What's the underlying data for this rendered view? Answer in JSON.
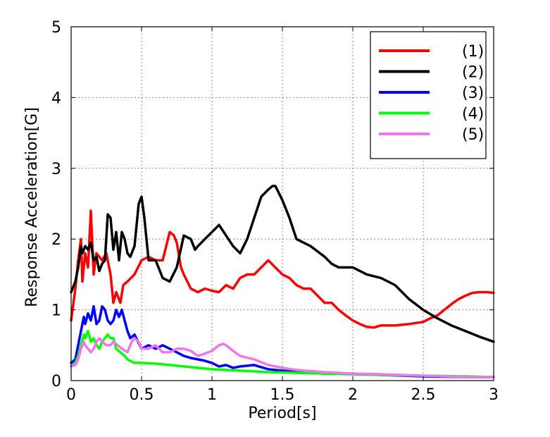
{
  "chart_data": {
    "type": "line",
    "title": "",
    "xlabel": "Period[s]",
    "ylabel": "Response Acceleration[G]",
    "xlim": [
      0,
      3
    ],
    "ylim": [
      0,
      5
    ],
    "xticks": [
      "0",
      "0.5",
      "1",
      "1.5",
      "2",
      "2.5",
      "3"
    ],
    "yticks": [
      "0",
      "1",
      "2",
      "3",
      "4",
      "5"
    ],
    "grid": true,
    "legend_position": "top-right",
    "series": [
      {
        "name": "(1)",
        "color": "#ff0000",
        "x": [
          0.0,
          0.03,
          0.05,
          0.07,
          0.08,
          0.1,
          0.12,
          0.14,
          0.16,
          0.18,
          0.2,
          0.22,
          0.25,
          0.28,
          0.3,
          0.32,
          0.35,
          0.37,
          0.4,
          0.45,
          0.5,
          0.55,
          0.6,
          0.65,
          0.7,
          0.73,
          0.75,
          0.78,
          0.8,
          0.85,
          0.9,
          0.95,
          1.0,
          1.05,
          1.1,
          1.15,
          1.2,
          1.25,
          1.3,
          1.35,
          1.4,
          1.45,
          1.5,
          1.55,
          1.6,
          1.65,
          1.7,
          1.75,
          1.8,
          1.85,
          1.9,
          1.95,
          2.0,
          2.05,
          2.1,
          2.15,
          2.2,
          2.25,
          2.3,
          2.4,
          2.5,
          2.55,
          2.6,
          2.65,
          2.7,
          2.75,
          2.8,
          2.85,
          2.9,
          2.95,
          3.0
        ],
        "y": [
          0.85,
          1.3,
          1.7,
          2.0,
          1.4,
          1.8,
          1.6,
          2.4,
          1.5,
          1.8,
          1.75,
          1.7,
          1.8,
          1.5,
          1.1,
          1.25,
          1.1,
          1.35,
          1.4,
          1.5,
          1.7,
          1.75,
          1.7,
          1.7,
          2.1,
          2.05,
          1.95,
          1.6,
          1.5,
          1.3,
          1.25,
          1.3,
          1.27,
          1.25,
          1.35,
          1.3,
          1.45,
          1.5,
          1.5,
          1.6,
          1.7,
          1.6,
          1.5,
          1.45,
          1.35,
          1.3,
          1.3,
          1.2,
          1.1,
          1.1,
          1.0,
          0.92,
          0.85,
          0.8,
          0.76,
          0.75,
          0.78,
          0.78,
          0.78,
          0.8,
          0.83,
          0.88,
          0.92,
          1.0,
          1.08,
          1.15,
          1.2,
          1.24,
          1.25,
          1.25,
          1.24
        ]
      },
      {
        "name": "(2)",
        "color": "#000000",
        "x": [
          0.0,
          0.03,
          0.05,
          0.07,
          0.08,
          0.1,
          0.12,
          0.14,
          0.16,
          0.18,
          0.2,
          0.22,
          0.24,
          0.26,
          0.28,
          0.3,
          0.32,
          0.34,
          0.36,
          0.38,
          0.4,
          0.42,
          0.45,
          0.48,
          0.5,
          0.52,
          0.55,
          0.6,
          0.65,
          0.7,
          0.75,
          0.8,
          0.85,
          0.88,
          0.9,
          0.95,
          1.0,
          1.05,
          1.1,
          1.15,
          1.2,
          1.25,
          1.3,
          1.35,
          1.4,
          1.43,
          1.45,
          1.5,
          1.55,
          1.6,
          1.65,
          1.7,
          1.8,
          1.85,
          1.9,
          1.95,
          2.0,
          2.05,
          2.1,
          2.2,
          2.3,
          2.4,
          2.5,
          2.6,
          2.7,
          2.8,
          2.9,
          3.0
        ],
        "y": [
          1.25,
          1.4,
          1.6,
          1.9,
          1.8,
          1.9,
          1.85,
          1.95,
          1.7,
          1.75,
          1.55,
          1.65,
          1.7,
          2.35,
          2.3,
          1.85,
          2.1,
          1.7,
          2.1,
          2.0,
          1.8,
          1.75,
          1.9,
          2.5,
          2.6,
          2.3,
          1.7,
          1.7,
          1.45,
          1.4,
          1.6,
          2.05,
          2.0,
          1.85,
          1.9,
          2.0,
          2.1,
          2.2,
          2.05,
          1.9,
          1.8,
          2.0,
          2.3,
          2.6,
          2.7,
          2.75,
          2.75,
          2.55,
          2.3,
          2.0,
          1.95,
          1.9,
          1.75,
          1.65,
          1.6,
          1.6,
          1.6,
          1.55,
          1.5,
          1.45,
          1.35,
          1.15,
          1.0,
          0.88,
          0.78,
          0.7,
          0.62,
          0.55
        ]
      },
      {
        "name": "(3)",
        "color": "#0000ff",
        "x": [
          0.0,
          0.03,
          0.05,
          0.07,
          0.09,
          0.1,
          0.12,
          0.14,
          0.16,
          0.18,
          0.2,
          0.22,
          0.24,
          0.26,
          0.28,
          0.3,
          0.32,
          0.34,
          0.36,
          0.38,
          0.4,
          0.42,
          0.45,
          0.5,
          0.55,
          0.6,
          0.65,
          0.7,
          0.75,
          0.8,
          0.85,
          0.9,
          0.95,
          1.0,
          1.05,
          1.1,
          1.15,
          1.2,
          1.3,
          1.4,
          1.5,
          1.6,
          1.8,
          2.0,
          2.2,
          2.5,
          2.8,
          3.0
        ],
        "y": [
          0.25,
          0.3,
          0.5,
          0.7,
          0.9,
          0.8,
          0.95,
          0.85,
          1.05,
          0.8,
          0.85,
          1.05,
          1.0,
          0.85,
          0.8,
          0.85,
          1.0,
          0.9,
          1.0,
          0.85,
          0.7,
          0.6,
          0.65,
          0.45,
          0.5,
          0.45,
          0.5,
          0.45,
          0.4,
          0.35,
          0.32,
          0.3,
          0.28,
          0.25,
          0.2,
          0.22,
          0.18,
          0.2,
          0.22,
          0.16,
          0.14,
          0.12,
          0.1,
          0.1,
          0.08,
          0.06,
          0.05,
          0.05
        ]
      },
      {
        "name": "(4)",
        "color": "#00ff00",
        "x": [
          0.0,
          0.03,
          0.05,
          0.07,
          0.09,
          0.1,
          0.12,
          0.14,
          0.16,
          0.18,
          0.2,
          0.22,
          0.24,
          0.26,
          0.28,
          0.3,
          0.32,
          0.35,
          0.38,
          0.4,
          0.45,
          0.5,
          0.6,
          0.7,
          0.8,
          1.0,
          1.2,
          1.4,
          1.6,
          1.8,
          2.0,
          2.2,
          2.5,
          2.8,
          3.0
        ],
        "y": [
          0.2,
          0.25,
          0.35,
          0.5,
          0.65,
          0.6,
          0.7,
          0.55,
          0.6,
          0.5,
          0.45,
          0.55,
          0.6,
          0.65,
          0.6,
          0.6,
          0.45,
          0.4,
          0.35,
          0.3,
          0.25,
          0.25,
          0.24,
          0.22,
          0.2,
          0.16,
          0.14,
          0.12,
          0.11,
          0.1,
          0.09,
          0.08,
          0.07,
          0.06,
          0.05
        ]
      },
      {
        "name": "(5)",
        "color": "#ee77ee",
        "x": [
          0.0,
          0.03,
          0.05,
          0.07,
          0.09,
          0.1,
          0.12,
          0.14,
          0.16,
          0.18,
          0.2,
          0.22,
          0.25,
          0.28,
          0.3,
          0.33,
          0.36,
          0.4,
          0.43,
          0.45,
          0.48,
          0.5,
          0.55,
          0.6,
          0.65,
          0.7,
          0.75,
          0.8,
          0.85,
          0.9,
          0.95,
          1.0,
          1.05,
          1.08,
          1.1,
          1.15,
          1.2,
          1.3,
          1.4,
          1.5,
          1.6,
          1.8,
          2.0,
          2.2,
          2.5,
          2.8,
          3.0
        ],
        "y": [
          0.2,
          0.22,
          0.3,
          0.45,
          0.55,
          0.5,
          0.45,
          0.4,
          0.45,
          0.55,
          0.6,
          0.55,
          0.5,
          0.5,
          0.55,
          0.5,
          0.45,
          0.4,
          0.55,
          0.6,
          0.55,
          0.45,
          0.45,
          0.5,
          0.4,
          0.4,
          0.45,
          0.45,
          0.42,
          0.35,
          0.38,
          0.42,
          0.5,
          0.52,
          0.5,
          0.42,
          0.35,
          0.3,
          0.22,
          0.18,
          0.15,
          0.12,
          0.1,
          0.09,
          0.07,
          0.05,
          0.05
        ]
      }
    ]
  }
}
